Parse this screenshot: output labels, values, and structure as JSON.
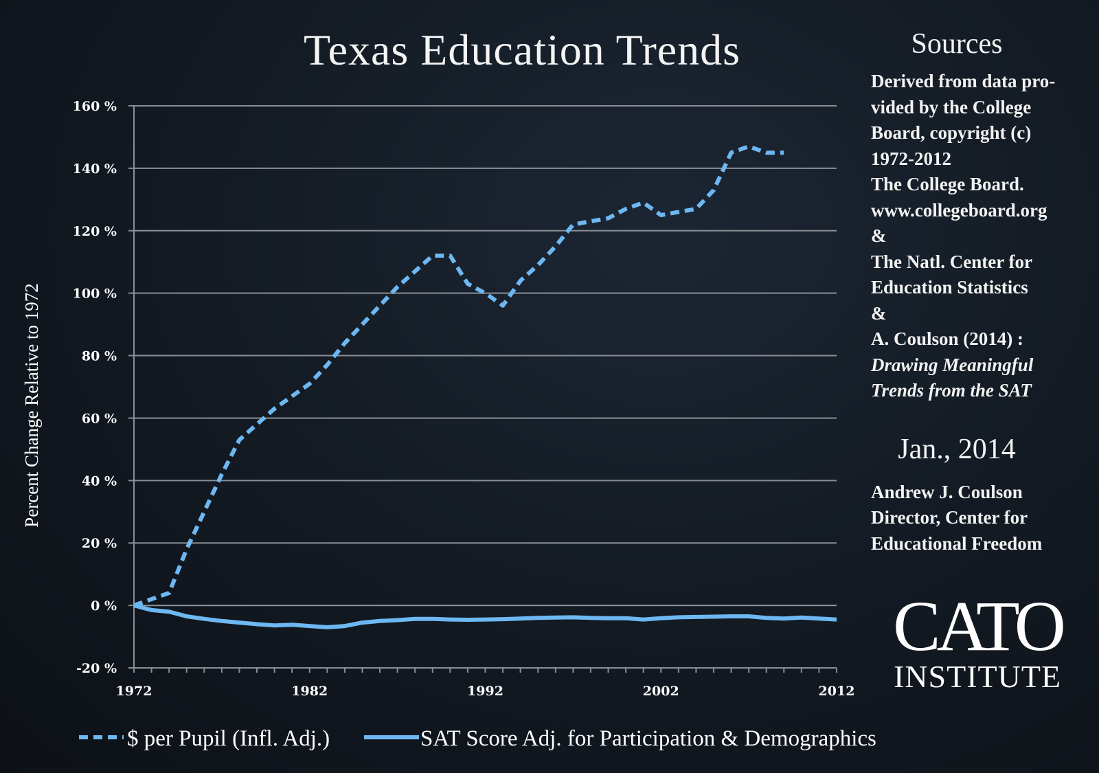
{
  "chart_data": {
    "type": "line",
    "title": "Texas Education Trends",
    "xlabel": "",
    "ylabel": "Percent Change Relative to 1972",
    "xlim": [
      1972,
      2012
    ],
    "ylim": [
      -20,
      160
    ],
    "x_ticks": [
      "1972",
      "1982",
      "1992",
      "2002",
      "2012"
    ],
    "y_ticks": [
      "160 %",
      "140 %",
      "120 %",
      "100 %",
      "80 %",
      "60 %",
      "40 %",
      "20 %",
      "0 %",
      "-20 %"
    ],
    "grid": true,
    "legend_position": "bottom",
    "series": [
      {
        "name": "$ per Pupil (Infl. Adj.)",
        "style": "dashed",
        "color": "#6db8f2",
        "x": [
          1972,
          1974,
          1975,
          1976,
          1977,
          1978,
          1979,
          1980,
          1981,
          1982,
          1983,
          1984,
          1985,
          1986,
          1987,
          1988,
          1989,
          1990,
          1991,
          1992,
          1993,
          1994,
          1995,
          1996,
          1997,
          1998,
          1999,
          2000,
          2001,
          2002,
          2003,
          2004,
          2005,
          2006,
          2007,
          2008,
          2009
        ],
        "values": [
          0,
          4,
          18,
          30,
          42,
          53,
          58,
          63,
          67,
          71,
          77,
          84,
          90,
          96,
          102,
          107,
          112,
          112,
          103,
          100,
          96,
          104,
          109,
          115,
          122,
          123,
          124,
          127,
          129,
          125,
          126,
          127,
          133,
          145,
          147,
          145,
          145
        ]
      },
      {
        "name": "SAT Score Adj. for Participation & Demographics",
        "style": "solid",
        "color": "#6db8f2",
        "x": [
          1972,
          1973,
          1974,
          1975,
          1976,
          1977,
          1978,
          1979,
          1980,
          1981,
          1982,
          1983,
          1984,
          1985,
          1986,
          1987,
          1988,
          1989,
          1990,
          1991,
          1992,
          1993,
          1994,
          1995,
          1996,
          1997,
          1998,
          1999,
          2000,
          2001,
          2002,
          2003,
          2004,
          2005,
          2006,
          2007,
          2008,
          2009,
          2010,
          2011,
          2012
        ],
        "values": [
          0,
          -1.5,
          -2,
          -3.5,
          -4.3,
          -5,
          -5.5,
          -6,
          -6.4,
          -6.2,
          -6.6,
          -7,
          -6.6,
          -5.5,
          -5,
          -4.7,
          -4.3,
          -4.3,
          -4.5,
          -4.6,
          -4.5,
          -4.4,
          -4.2,
          -4,
          -3.9,
          -3.8,
          -4,
          -4.1,
          -4.1,
          -4.5,
          -4.1,
          -3.8,
          -3.7,
          -3.6,
          -3.5,
          -3.5,
          -4,
          -4.2,
          -3.9,
          -4.2,
          -4.5
        ]
      }
    ]
  },
  "sidebar": {
    "heading": "Sources",
    "lines": [
      "Derived from data pro-",
      "vided by the College",
      "Board, copyright (c)",
      "1972-2012",
      "The College Board.",
      "www.collegeboard.org",
      "&",
      "The Natl. Center for",
      "Education Statistics",
      "&",
      "A. Coulson (2014) :"
    ],
    "italic_lines": [
      "Drawing Meaningful",
      "Trends from the SAT"
    ],
    "date": "Jan., 2014",
    "author_lines": [
      "Andrew J. Coulson",
      "Director, Center for",
      "Educational Freedom"
    ]
  },
  "logo": {
    "main": "CATO",
    "sub": "INSTITUTE"
  },
  "colors": {
    "grid": "#8a8f96",
    "line": "#6db8f2",
    "negative_tick": "#ff2a2a",
    "text": "#ffffff"
  }
}
